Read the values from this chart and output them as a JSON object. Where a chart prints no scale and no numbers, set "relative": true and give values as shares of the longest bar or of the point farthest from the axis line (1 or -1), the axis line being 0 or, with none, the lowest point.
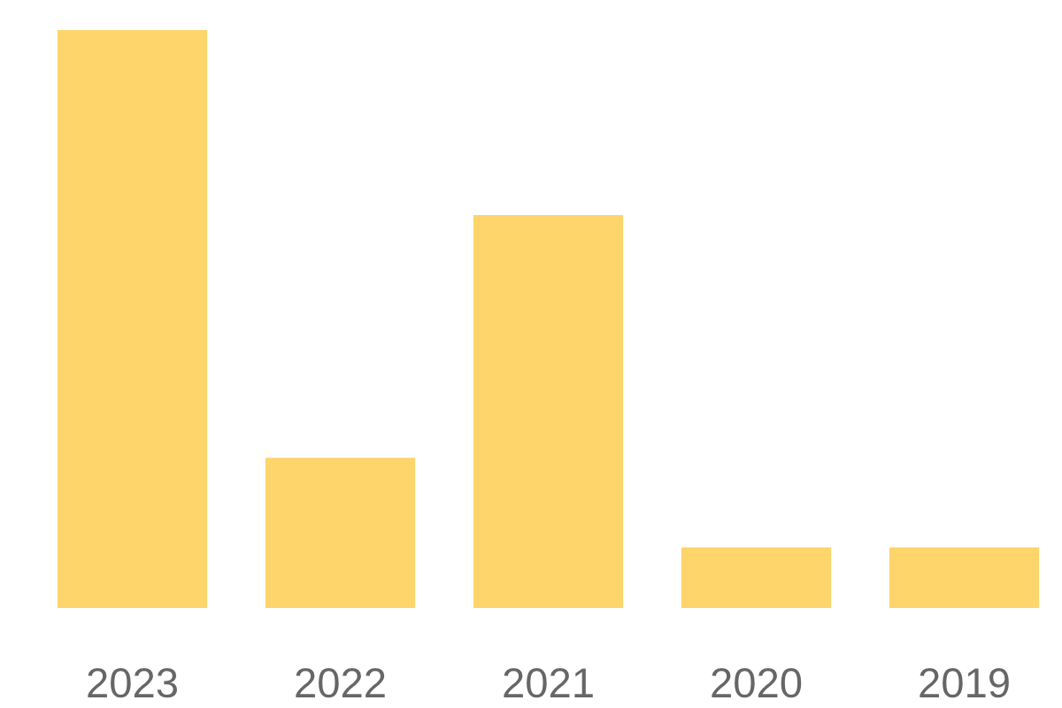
{
  "chart_data": {
    "type": "bar",
    "relative": true,
    "categories": [
      "2023",
      "2022",
      "2021",
      "2020",
      "2019"
    ],
    "values": [
      1,
      0.26,
      0.68,
      0.105,
      0.105
    ],
    "color": "#fdd56b"
  }
}
